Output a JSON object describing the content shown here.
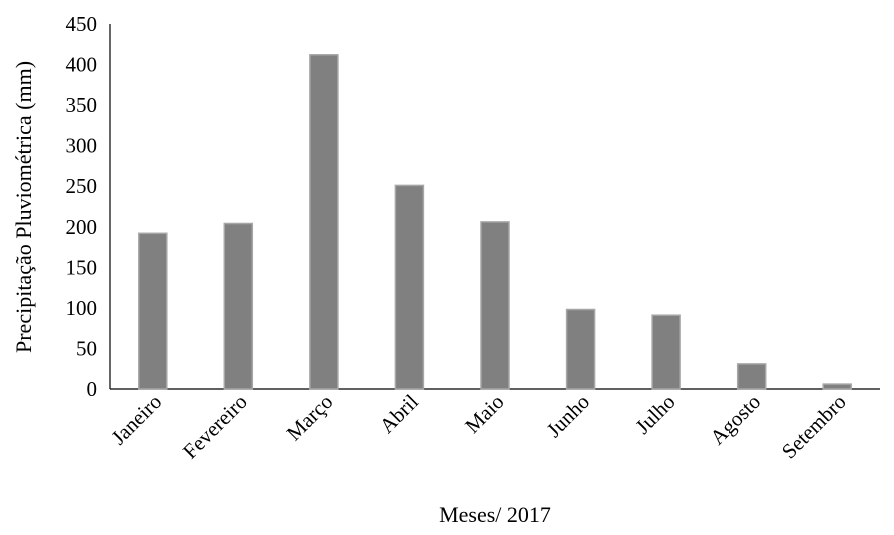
{
  "chart_data": {
    "type": "bar",
    "title": "",
    "xlabel": "Meses/ 2017",
    "ylabel": "Precipitação  Pluviométrica (mm)",
    "categories": [
      "Janeiro",
      "Fevereiro",
      "Março",
      "Abril",
      "Maio",
      "Junho",
      "Julho",
      "Agosto",
      "Setembro"
    ],
    "values": [
      192,
      204,
      412,
      251,
      206,
      98,
      91,
      31,
      6
    ],
    "ylim": [
      0,
      450
    ],
    "yticks": [
      0,
      50,
      100,
      150,
      200,
      250,
      300,
      350,
      400,
      450
    ],
    "grid": false,
    "legend": "none",
    "colors": {
      "bar_fill": "#808080",
      "bar_stroke": "#a6a6a6",
      "axis": "#000000"
    }
  }
}
